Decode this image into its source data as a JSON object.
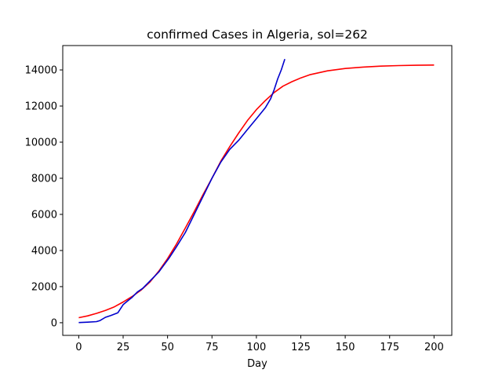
{
  "chart_data": {
    "type": "line",
    "title": "confirmed Cases in Algeria, sol=262",
    "xlabel": "Day",
    "ylabel": "",
    "xlim": [
      -9,
      210
    ],
    "ylim": [
      -700,
      15350
    ],
    "xticks": [
      0,
      25,
      50,
      75,
      100,
      125,
      150,
      175,
      200
    ],
    "yticks": [
      0,
      2000,
      4000,
      6000,
      8000,
      10000,
      12000,
      14000
    ],
    "grid": false,
    "series": [
      {
        "color": "#ff0000",
        "x": [
          0,
          5,
          10,
          15,
          20,
          25,
          30,
          35,
          40,
          45,
          50,
          55,
          60,
          65,
          70,
          75,
          80,
          85,
          90,
          95,
          100,
          105,
          110,
          115,
          120,
          125,
          130,
          140,
          150,
          160,
          170,
          180,
          190,
          200
        ],
        "y": [
          280,
          380,
          520,
          680,
          880,
          1150,
          1450,
          1800,
          2250,
          2850,
          3550,
          4350,
          5250,
          6150,
          7100,
          8000,
          8950,
          9750,
          10500,
          11200,
          11800,
          12300,
          12750,
          13100,
          13350,
          13560,
          13730,
          13950,
          14080,
          14160,
          14210,
          14240,
          14260,
          14270
        ]
      },
      {
        "color": "#0000cd",
        "x": [
          0,
          5,
          10,
          12,
          15,
          18,
          22,
          25,
          28,
          30,
          33,
          36,
          39,
          42,
          45,
          48,
          51,
          55,
          60,
          65,
          70,
          75,
          80,
          85,
          90,
          95,
          100,
          105,
          108,
          110,
          112,
          114,
          116
        ],
        "y": [
          10,
          30,
          60,
          120,
          300,
          400,
          550,
          1000,
          1250,
          1400,
          1700,
          1900,
          2200,
          2500,
          2800,
          3200,
          3600,
          4200,
          5000,
          6000,
          7000,
          8000,
          8900,
          9600,
          10100,
          10700,
          11300,
          11900,
          12400,
          12900,
          13500,
          14000,
          14600
        ]
      }
    ]
  }
}
